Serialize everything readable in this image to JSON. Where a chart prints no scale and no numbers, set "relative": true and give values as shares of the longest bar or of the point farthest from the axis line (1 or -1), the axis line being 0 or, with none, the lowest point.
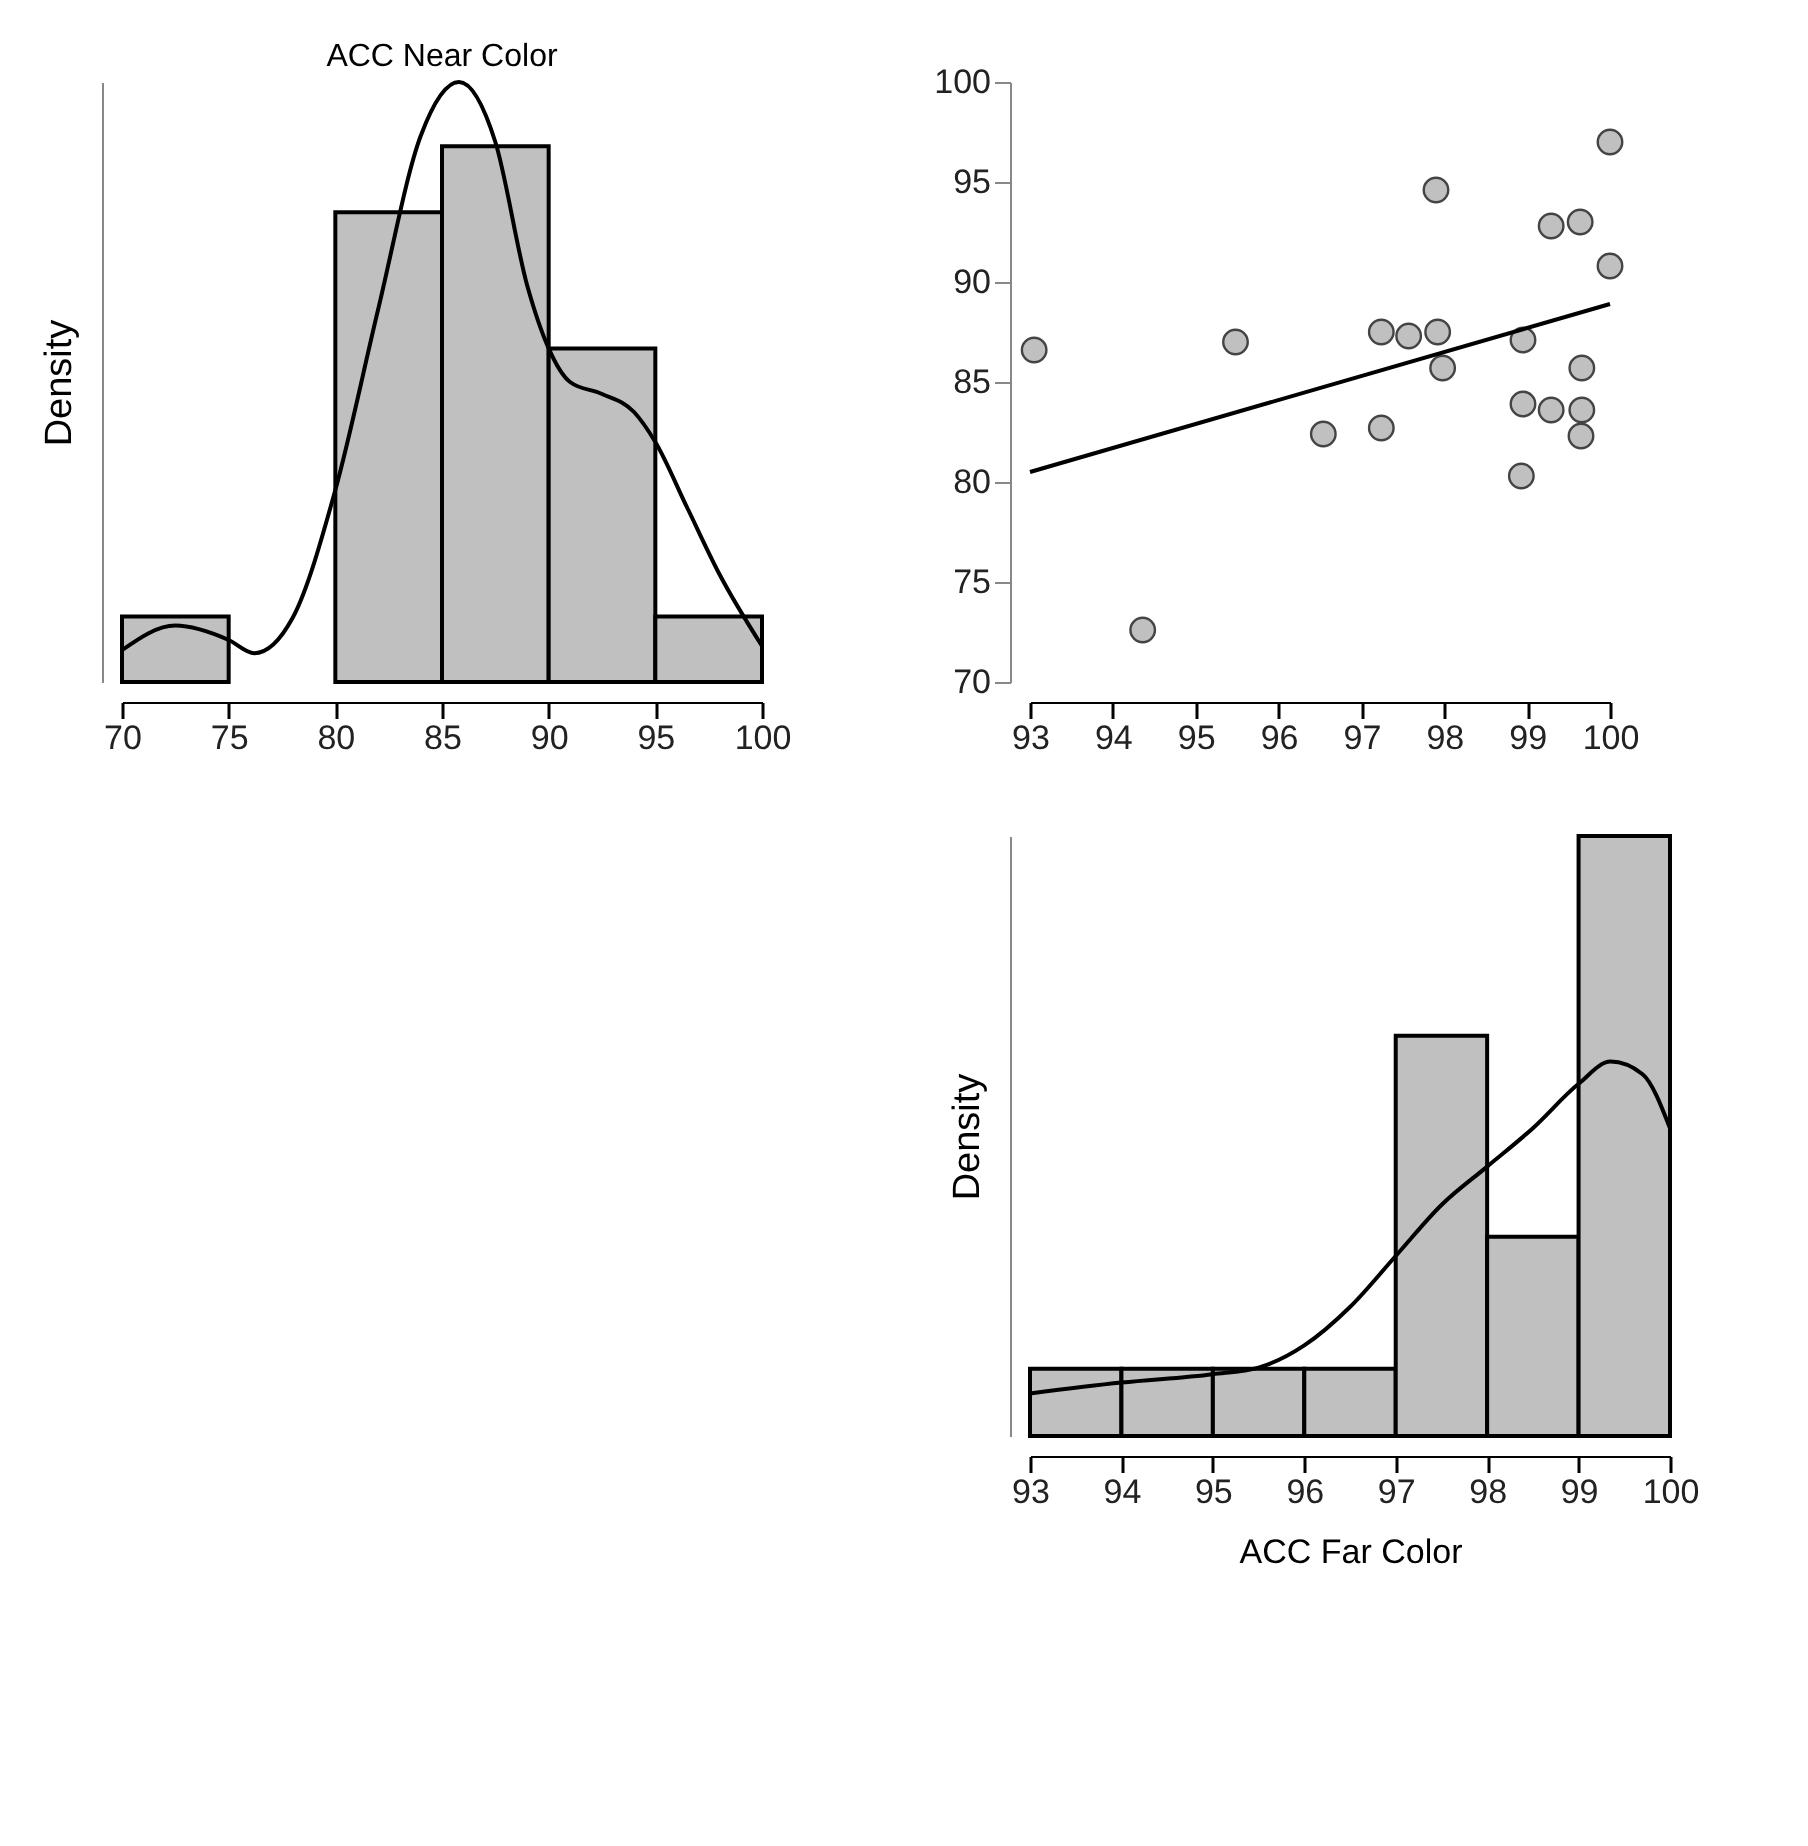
{
  "chart_data": [
    {
      "type": "histogram",
      "title": "ACC Near Color",
      "ylabel": "Density",
      "relative": true,
      "grid": false,
      "color": "#c0c0c0",
      "bins": [
        70,
        75,
        80,
        85,
        90,
        95,
        100
      ],
      "values": [
        0.109,
        null,
        0.783,
        0.893,
        0.556,
        0.109
      ],
      "xlim": [
        70,
        100
      ],
      "xticks": [
        70,
        75,
        80,
        85,
        90,
        95,
        100
      ],
      "tick_labels": "x",
      "series": [
        {
          "type": "line",
          "color": "#000000",
          "x": [
            70,
            72.5,
            75,
            76.2,
            78,
            80,
            82,
            84,
            85.8,
            87.5,
            89,
            90,
            91,
            92.5,
            94,
            95,
            96.5,
            98,
            100
          ],
          "values": [
            0.053,
            0.094,
            0.07,
            0.048,
            0.107,
            0.32,
            0.62,
            0.91,
            1,
            0.9,
            0.66,
            0.556,
            0.5,
            0.48,
            0.45,
            0.4,
            0.29,
            0.18,
            0.06
          ]
        }
      ]
    },
    {
      "type": "scatter",
      "grid": false,
      "xlim": [
        93,
        100
      ],
      "xticks": [
        93,
        94,
        95,
        96,
        97,
        98,
        99,
        100
      ],
      "ylim": [
        70,
        100
      ],
      "yticks": [
        70,
        75,
        80,
        85,
        90,
        95,
        100
      ],
      "series": [
        {
          "type": "scatter",
          "marker": "circle",
          "color": "#c0c0c0",
          "x": [
            93.05,
            94.36,
            95.48,
            96.54,
            97.24,
            97.24,
            97.57,
            97.9,
            97.92,
            97.98,
            98.95,
            98.95,
            98.93,
            99.29,
            99.29,
            99.64,
            99.66,
            99.66,
            99.65,
            100,
            100
          ],
          "values": [
            86.6,
            72.6,
            87.0,
            82.4,
            82.7,
            87.5,
            87.3,
            94.6,
            87.5,
            85.7,
            87.1,
            83.9,
            80.3,
            92.8,
            83.6,
            93.0,
            85.7,
            83.6,
            82.3,
            97.0,
            90.8
          ]
        },
        {
          "type": "line",
          "color": "#000000",
          "x": [
            93,
            100
          ],
          "values": [
            80.5,
            88.9
          ]
        }
      ]
    },
    {
      "type": "histogram",
      "xlabel": "ACC Far Color",
      "ylabel": "Density",
      "relative": true,
      "grid": false,
      "color": "#c0c0c0",
      "bins": [
        93,
        94,
        95,
        96,
        97,
        98,
        99,
        100
      ],
      "values": [
        0.112,
        0.112,
        0.112,
        0.112,
        0.667,
        0.332,
        1
      ],
      "xlim": [
        93,
        100
      ],
      "xticks": [
        93,
        94,
        95,
        96,
        97,
        98,
        99,
        100
      ],
      "tick_labels": "x",
      "series": [
        {
          "type": "line",
          "color": "#000000",
          "x": [
            93,
            94,
            95,
            95.5,
            96,
            96.5,
            97,
            97.5,
            98,
            98.5,
            99,
            99.35,
            99.7,
            100
          ],
          "values": [
            0.071,
            0.089,
            0.103,
            0.114,
            0.151,
            0.215,
            0.3,
            0.385,
            0.449,
            0.513,
            0.587,
            0.624,
            0.603,
            0.513
          ]
        }
      ]
    }
  ]
}
